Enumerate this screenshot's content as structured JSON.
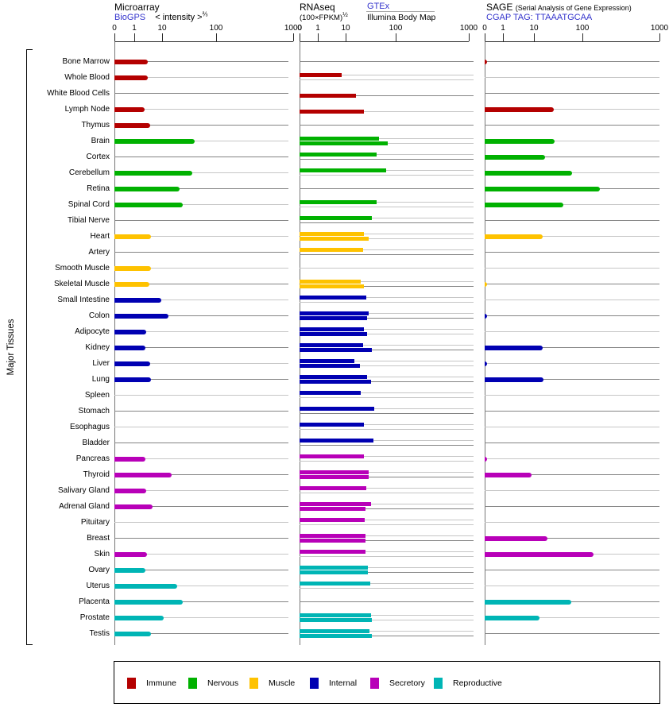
{
  "chart_data": {
    "type": "bar",
    "orientation": "horizontal",
    "y_axis_label": "Major Tissues",
    "axis_tick_labels": [
      "0",
      "1",
      "10",
      "100",
      "1000"
    ],
    "axis_tick_values": [
      0,
      1,
      10,
      100,
      1000
    ],
    "axis_scale": "power (non-linear decades)",
    "grid": "per-row horizontal guide lines, alternating dark/light gray",
    "legend_position": "bottom",
    "panels": [
      {
        "id": "microarray",
        "title": "Microarray",
        "source_link": "BioGPS",
        "formula": "< intensity >",
        "formula_exponent": "⅔"
      },
      {
        "id": "rnaseq",
        "title": "RNAseq",
        "formula": "(100×FPKM)",
        "formula_exponent": "½",
        "source_link": "GTEx",
        "source2": "Illumina Body Map"
      },
      {
        "id": "sage",
        "title": "SAGE",
        "subtitle": "(Serial Analysis of Gene Expression)",
        "source_link": "CGAP TAG: TTAAATGCAA"
      }
    ],
    "series_names": [
      "Microarray (BioGPS)",
      "RNAseq GTEx",
      "RNAseq Illumina Body Map",
      "SAGE CGAP"
    ],
    "legend": [
      {
        "label": "Immune",
        "color": "#b40000"
      },
      {
        "label": "Nervous",
        "color": "#00b100"
      },
      {
        "label": "Muscle",
        "color": "#fec200"
      },
      {
        "label": "Internal",
        "color": "#0000b2"
      },
      {
        "label": "Secretory",
        "color": "#b800b8"
      },
      {
        "label": "Reproductive",
        "color": "#00b5b5"
      }
    ],
    "tissues": [
      {
        "name": "Bone Marrow",
        "group": "Immune",
        "microarray": 3,
        "gtex": null,
        "bodymap": null,
        "sage": 0.15
      },
      {
        "name": "Whole Blood",
        "group": "Immune",
        "microarray": 3,
        "gtex": 7,
        "bodymap": null,
        "sage": null
      },
      {
        "name": "White Blood Cells",
        "group": "Immune",
        "microarray": null,
        "gtex": null,
        "bodymap": 16,
        "sage": null
      },
      {
        "name": "Lymph Node",
        "group": "Immune",
        "microarray": 2.4,
        "gtex": null,
        "bodymap": 23,
        "sage": 26
      },
      {
        "name": "Thymus",
        "group": "Immune",
        "microarray": 3.7,
        "gtex": null,
        "bodymap": null,
        "sage": null
      },
      {
        "name": "Brain",
        "group": "Nervous",
        "microarray": 40,
        "gtex": 46,
        "bodymap": 69,
        "sage": 27
      },
      {
        "name": "Cortex",
        "group": "Nervous",
        "microarray": null,
        "gtex": 42,
        "bodymap": null,
        "sage": 17
      },
      {
        "name": "Cerebellum",
        "group": "Nervous",
        "microarray": 36,
        "gtex": 65,
        "bodymap": null,
        "sage": 61
      },
      {
        "name": "Retina",
        "group": "Nervous",
        "microarray": 21,
        "gtex": null,
        "bodymap": null,
        "sage": 170
      },
      {
        "name": "Spinal Cord",
        "group": "Nervous",
        "microarray": 24,
        "gtex": 42,
        "bodymap": null,
        "sage": 40
      },
      {
        "name": "Tibial Nerve",
        "group": "Nervous",
        "microarray": null,
        "gtex": 33,
        "bodymap": null,
        "sage": null
      },
      {
        "name": "Heart",
        "group": "Muscle",
        "microarray": 4,
        "gtex": 23,
        "bodymap": 29,
        "sage": 15
      },
      {
        "name": "Artery",
        "group": "Muscle",
        "microarray": null,
        "gtex": 22,
        "bodymap": null,
        "sage": null
      },
      {
        "name": "Smooth Muscle",
        "group": "Muscle",
        "microarray": 4,
        "gtex": null,
        "bodymap": null,
        "sage": null
      },
      {
        "name": "Skeletal Muscle",
        "group": "Muscle",
        "microarray": 3.5,
        "gtex": 20,
        "bodymap": 23,
        "sage": 0.15
      },
      {
        "name": "Small Intestine",
        "group": "Internal",
        "microarray": 9.4,
        "gtex": 26,
        "bodymap": null,
        "sage": null
      },
      {
        "name": "Colon",
        "group": "Internal",
        "microarray": 13,
        "gtex": 29,
        "bodymap": 27,
        "sage": 0.15
      },
      {
        "name": "Adipocyte",
        "group": "Internal",
        "microarray": 2.7,
        "gtex": 23,
        "bodymap": 27,
        "sage": null
      },
      {
        "name": "Kidney",
        "group": "Internal",
        "microarray": 2.5,
        "gtex": 22,
        "bodymap": 33,
        "sage": 15
      },
      {
        "name": "Liver",
        "group": "Internal",
        "microarray": 3.7,
        "gtex": 15,
        "bodymap": 19,
        "sage": 0.15
      },
      {
        "name": "Lung",
        "group": "Internal",
        "microarray": 4,
        "gtex": 27,
        "bodymap": 32,
        "sage": 16
      },
      {
        "name": "Spleen",
        "group": "Internal",
        "microarray": null,
        "gtex": 20,
        "bodymap": null,
        "sage": null
      },
      {
        "name": "Stomach",
        "group": "Internal",
        "microarray": null,
        "gtex": 37,
        "bodymap": null,
        "sage": null
      },
      {
        "name": "Esophagus",
        "group": "Internal",
        "microarray": null,
        "gtex": 23,
        "bodymap": null,
        "sage": null
      },
      {
        "name": "Bladder",
        "group": "Internal",
        "microarray": null,
        "gtex": 36,
        "bodymap": null,
        "sage": null
      },
      {
        "name": "Pancreas",
        "group": "Secretory",
        "microarray": 2.5,
        "gtex": 23,
        "bodymap": null,
        "sage": 0.15
      },
      {
        "name": "Thyroid",
        "group": "Secretory",
        "microarray": 15,
        "gtex": 29,
        "bodymap": 29,
        "sage": 8.4
      },
      {
        "name": "Salivary Gland",
        "group": "Secretory",
        "microarray": 2.7,
        "gtex": 26,
        "bodymap": null,
        "sage": null
      },
      {
        "name": "Adrenal Gland",
        "group": "Secretory",
        "microarray": 4.5,
        "gtex": 32,
        "bodymap": 25,
        "sage": null
      },
      {
        "name": "Pituitary",
        "group": "Secretory",
        "microarray": null,
        "gtex": 24,
        "bodymap": null,
        "sage": null
      },
      {
        "name": "Breast",
        "group": "Secretory",
        "microarray": null,
        "gtex": 25,
        "bodymap": 25,
        "sage": 19
      },
      {
        "name": "Skin",
        "group": "Secretory",
        "microarray": 2.9,
        "gtex": 25,
        "bodymap": null,
        "sage": 140
      },
      {
        "name": "Ovary",
        "group": "Reproductive",
        "microarray": 2.5,
        "gtex": 28,
        "bodymap": 28,
        "sage": null
      },
      {
        "name": "Uterus",
        "group": "Reproductive",
        "microarray": 19,
        "gtex": 31,
        "bodymap": null,
        "sage": null
      },
      {
        "name": "Placenta",
        "group": "Reproductive",
        "microarray": 24,
        "gtex": null,
        "bodymap": null,
        "sage": 60
      },
      {
        "name": "Prostate",
        "group": "Reproductive",
        "microarray": 10.6,
        "gtex": 32,
        "bodymap": 34,
        "sage": 13
      },
      {
        "name": "Testis",
        "group": "Reproductive",
        "microarray": 3.9,
        "gtex": 30,
        "bodymap": 34,
        "sage": null
      }
    ]
  }
}
